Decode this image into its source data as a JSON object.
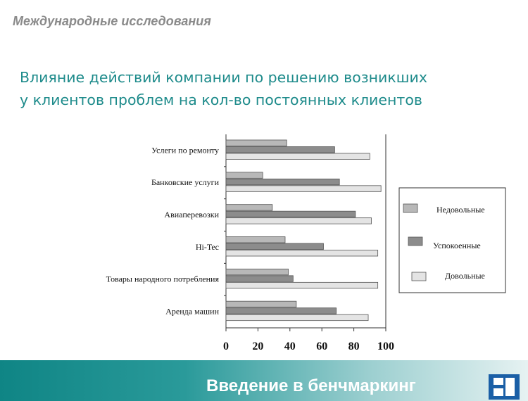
{
  "header": {
    "section_title": "Международные исследования",
    "title_line1": "Влияние действий компании по решению возникших",
    "title_line2": "у клиентов проблем на кол-во постоянных клиентов"
  },
  "footer": {
    "text": "Введение в бенчмаркинг"
  },
  "colors": {
    "accent": "#1e8b8b",
    "series": [
      "#b8b8b8",
      "#8c8c8c",
      "#e4e4e4"
    ]
  },
  "chart_data": {
    "type": "bar",
    "orientation": "horizontal",
    "categories": [
      "Услеги по ремонту",
      "Банковские услуги",
      "Авиаперевозки",
      "Hi-Tec",
      "Товары народного потребления",
      "Аренда машин"
    ],
    "series": [
      {
        "name": "Недовольные",
        "values": [
          38,
          23,
          29,
          37,
          39,
          44
        ]
      },
      {
        "name": "Успокоенные",
        "values": [
          68,
          71,
          81,
          61,
          42,
          69
        ]
      },
      {
        "name": "Довольные",
        "values": [
          90,
          97,
          91,
          95,
          95,
          89
        ]
      }
    ],
    "xticks": [
      "0",
      "20",
      "40",
      "60",
      "80",
      "100"
    ],
    "xlim": [
      0,
      100
    ],
    "legend_position": "right",
    "grid": false
  }
}
